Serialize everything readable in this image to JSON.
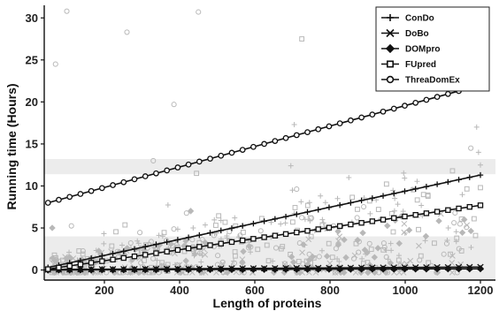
{
  "chart_data": {
    "type": "scatter",
    "xlabel": "Length of proteins",
    "ylabel": "Running time (Hours)",
    "xlim": [
      40,
      1240
    ],
    "ylim": [
      -1.2,
      31.5
    ],
    "xticks": [
      200,
      400,
      600,
      800,
      1000,
      1200
    ],
    "yticks": [
      0,
      5,
      10,
      15,
      20,
      25,
      30
    ],
    "grid": false,
    "legend_position": "top-right",
    "colors": {
      "scatter": "#b8b8b8",
      "lines": "#111111",
      "band": "#ececec"
    },
    "series": [
      {
        "name": "ConDo",
        "marker": "plus",
        "fit": {
          "x": [
            50,
            1200
          ],
          "y": [
            0.3,
            11.3
          ]
        }
      },
      {
        "name": "DoBo",
        "marker": "x",
        "fit": {
          "x": [
            50,
            1200
          ],
          "y": [
            0.05,
            0.35
          ]
        }
      },
      {
        "name": "DOMpro",
        "marker": "diamond",
        "fit": {
          "x": [
            50,
            1200
          ],
          "y": [
            0.0,
            0.15
          ]
        }
      },
      {
        "name": "FUpred",
        "marker": "square",
        "fit": {
          "x": [
            50,
            1200
          ],
          "y": [
            0.1,
            7.7
          ]
        }
      },
      {
        "name": "ThreaDomEx",
        "marker": "circle",
        "fit": {
          "x": [
            50,
            1200
          ],
          "y": [
            8.0,
            22.0
          ]
        }
      }
    ],
    "outliers": [
      {
        "marker": "circle",
        "x": 70,
        "y": 24.5
      },
      {
        "marker": "circle",
        "x": 100,
        "y": 30.8
      },
      {
        "marker": "circle",
        "x": 260,
        "y": 28.3
      },
      {
        "marker": "circle",
        "x": 450,
        "y": 30.7
      },
      {
        "marker": "square",
        "x": 725,
        "y": 27.5
      },
      {
        "marker": "circle",
        "x": 385,
        "y": 19.7
      },
      {
        "marker": "plus",
        "x": 1190,
        "y": 17.0
      },
      {
        "marker": "plus",
        "x": 1195,
        "y": 14.0
      },
      {
        "marker": "plus",
        "x": 1200,
        "y": 12.5
      },
      {
        "marker": "square",
        "x": 445,
        "y": 11.5
      },
      {
        "marker": "circle",
        "x": 330,
        "y": 13.0
      },
      {
        "marker": "plus",
        "x": 705,
        "y": 17.3
      },
      {
        "marker": "square",
        "x": 1200,
        "y": 9.8
      },
      {
        "marker": "plus",
        "x": 820,
        "y": 8.5
      },
      {
        "marker": "plus",
        "x": 850,
        "y": 11.0
      },
      {
        "marker": "plus",
        "x": 700,
        "y": 9.5
      }
    ]
  }
}
